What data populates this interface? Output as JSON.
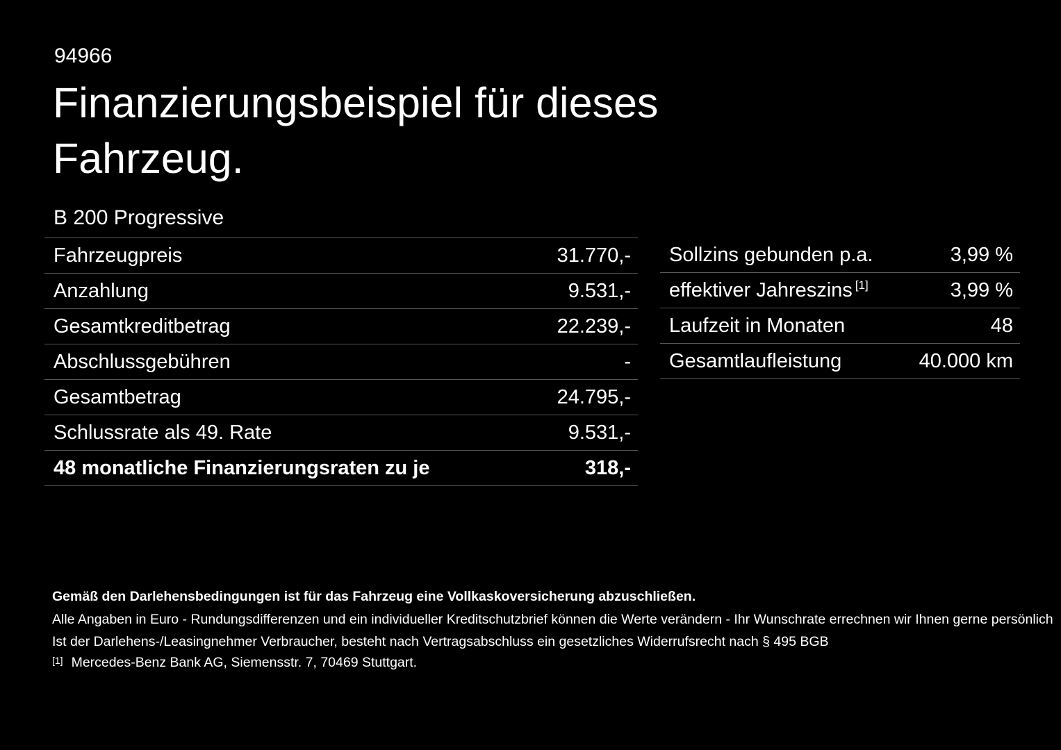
{
  "page": {
    "id_number": "94966",
    "title": "Finanzierungsbeispiel für dieses Fahrzeug.",
    "subtitle": "B 200 Progressive"
  },
  "left_table": {
    "rows": [
      {
        "label": "Fahrzeugpreis",
        "value": "31.770,-"
      },
      {
        "label": "Anzahlung",
        "value": "9.531,-"
      },
      {
        "label": "Gesamtkreditbetrag",
        "value": "22.239,-"
      },
      {
        "label": "Abschlussgebühren",
        "value": "-"
      },
      {
        "label": "Gesamtbetrag",
        "value": "24.795,-"
      },
      {
        "label": "Schlussrate als 49. Rate",
        "value": "9.531,-"
      },
      {
        "label": "48 monatliche Finanzierungsraten zu je",
        "value": "318,-"
      }
    ]
  },
  "right_table": {
    "rows": [
      {
        "label": "Sollzins gebunden p.a.",
        "value": "3,99 %"
      },
      {
        "label": "effektiver Jahreszins",
        "sup": "[1]",
        "value": "3,99 %"
      },
      {
        "label": "Laufzeit in Monaten",
        "value": "48"
      },
      {
        "label": "Gesamtlaufleistung",
        "value": "40.000 km"
      }
    ]
  },
  "footer": {
    "insurance_note": "Gemäß den Darlehensbedingungen ist für das Fahrzeug eine Vollkaskoversicherung abzuschließen.",
    "disclaimer_values": "Alle Angaben in Euro - Rundungsdifferenzen und ein individueller Kreditschutzbrief können die Werte verändern - Ihr Wunschrate errechnen wir Ihnen gerne persönlich",
    "disclaimer_withdrawal": "Ist der Darlehens-/Leasingnehmer Verbraucher, besteht nach Vertragsabschluss ein gesetzliches Widerrufsrecht nach § 495 BGB",
    "footnote_marker": "[1]",
    "footnote_text": "Mercedes-Benz Bank AG, Siemensstr. 7, 70469 Stuttgart."
  },
  "colors": {
    "background": "#000000",
    "text": "#ffffff",
    "divider": "#585858"
  }
}
